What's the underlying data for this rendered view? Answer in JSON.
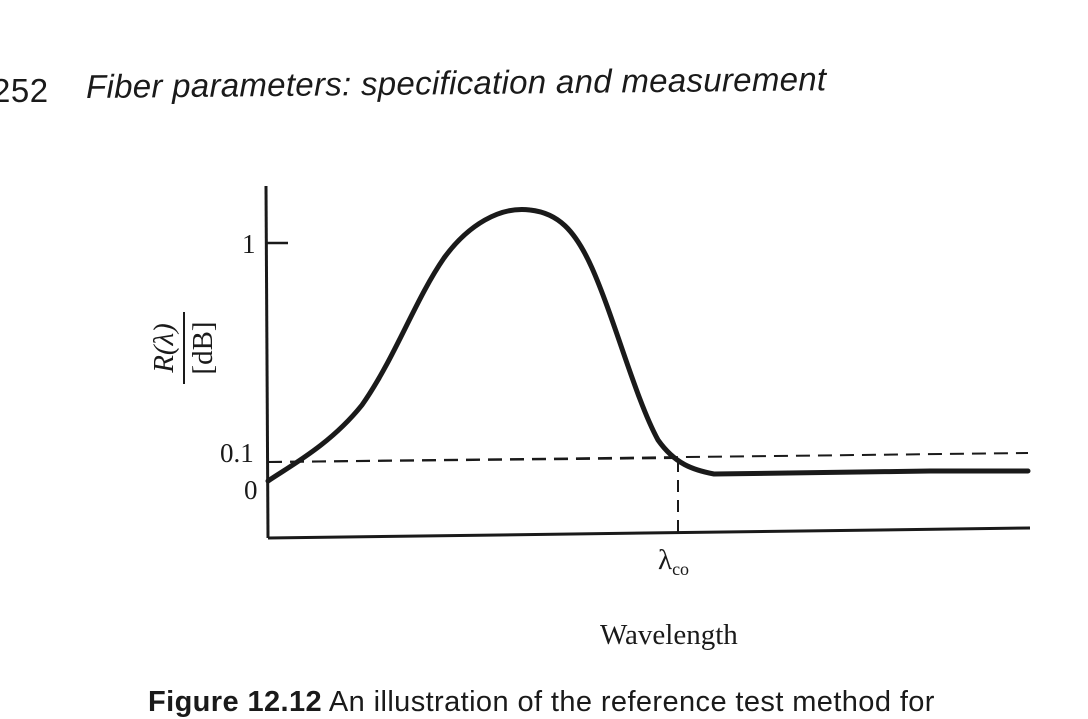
{
  "header": {
    "page_number": "252",
    "running_title": "Fiber parameters: specification and measurement"
  },
  "figure": {
    "y_label_top": "R(λ)",
    "y_label_bottom": "[dB]",
    "x_label": "Wavelength",
    "ticks": {
      "y_one": "1",
      "y_point_one": "0.1",
      "y_zero": "0",
      "x_cutoff_symbol": "λ",
      "x_cutoff_subscript": "co"
    }
  },
  "caption": {
    "label": "Figure 12.12",
    "text": "An illustration of the reference test method for"
  },
  "chart_data": {
    "type": "line",
    "title": "",
    "xlabel": "Wavelength",
    "ylabel": "R(λ) [dB]",
    "x_tick_labels": [
      "λco"
    ],
    "y_tick_labels": [
      "0",
      "0.1",
      "1"
    ],
    "series": [
      {
        "values": [
          [
            0.0,
            0.0
          ],
          [
            0.08,
            0.12
          ],
          [
            0.14,
            0.38
          ],
          [
            0.2,
            0.8
          ],
          [
            0.26,
            1.13
          ],
          [
            0.32,
            1.27
          ],
          [
            0.38,
            1.29
          ],
          [
            0.44,
            1.12
          ],
          [
            0.5,
            0.66
          ],
          [
            0.55,
            0.28
          ],
          [
            0.59,
            0.1
          ],
          [
            0.63,
            0.02
          ],
          [
            0.7,
            0.0
          ],
          [
            0.85,
            0.0
          ],
          [
            1.0,
            0.01
          ]
        ]
      }
    ],
    "reference_lines": [
      {
        "type": "horizontal",
        "y": 0.1,
        "style": "dashed"
      },
      {
        "type": "vertical",
        "x_label": "λco",
        "style": "dashed"
      }
    ],
    "grid": false
  }
}
